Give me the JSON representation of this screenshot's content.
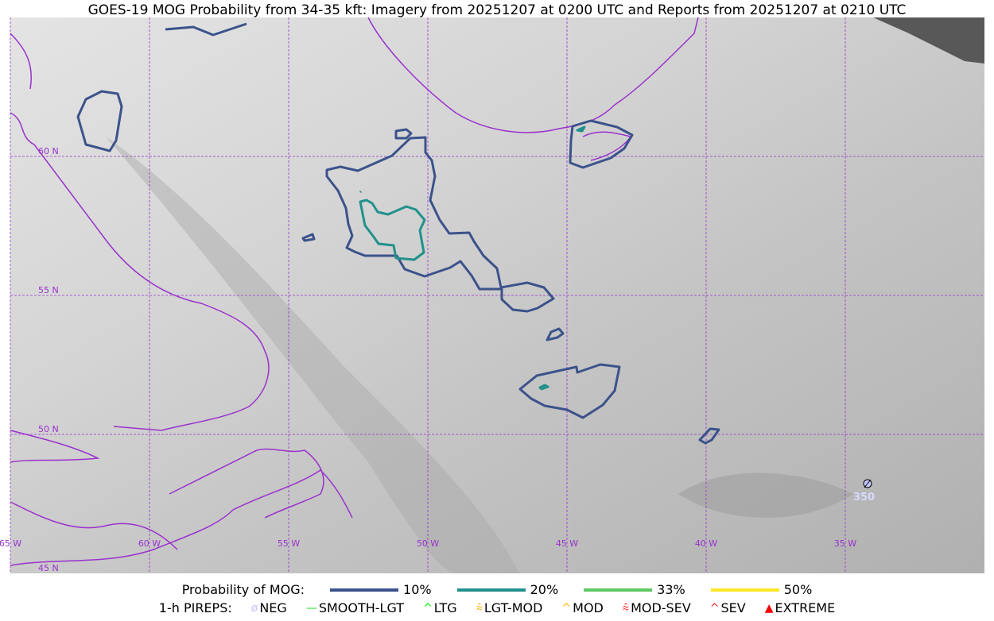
{
  "title": "GOES-19 MOG Probability from 34-35 kft: Imagery from 20251207 at 0200 UTC and Reports from 20251207 at 0210 UTC",
  "map": {
    "lon_labels": [
      "65 W",
      "60 W",
      "55 W",
      "50 W",
      "45 W",
      "40 W",
      "35 W"
    ],
    "lat_labels": [
      "60 N",
      "55 N",
      "50 N",
      "45 N"
    ],
    "coast_color": "#9932cc",
    "grid_color": "#9932cc",
    "pirep_report": {
      "type": "NEG",
      "label": "350",
      "icon": "neg-slashed-circle-icon"
    }
  },
  "legend": {
    "prob_title": "Probability of MOG:",
    "prob_items": [
      {
        "label": "10%",
        "color": "#3b528b"
      },
      {
        "label": "20%",
        "color": "#21918c"
      },
      {
        "label": "33%",
        "color": "#5ec962"
      },
      {
        "label": "50%",
        "color": "#fde725"
      }
    ],
    "pirep_title": "1-h PIREPS:",
    "pirep_items": [
      {
        "label": "NEG",
        "color": "#c8c8ff",
        "icon": "neg-icon"
      },
      {
        "label": "SMOOTH-LGT",
        "color": "#22dd22",
        "icon": "line-icon"
      },
      {
        "label": "LTG",
        "color": "#00ee00",
        "icon": "caret-icon"
      },
      {
        "label": "LGT-MOD",
        "color": "#ffb000",
        "icon": "caret-bar-icon"
      },
      {
        "label": "MOD",
        "color": "#ffb000",
        "icon": "caret-icon"
      },
      {
        "label": "MOD-SEV",
        "color": "#ff2020",
        "icon": "double-caret-bar-icon"
      },
      {
        "label": "SEV",
        "color": "#ff2020",
        "icon": "double-caret-icon"
      },
      {
        "label": "EXTREME",
        "color": "#ff0000",
        "icon": "filled-triangle-icon"
      }
    ]
  }
}
